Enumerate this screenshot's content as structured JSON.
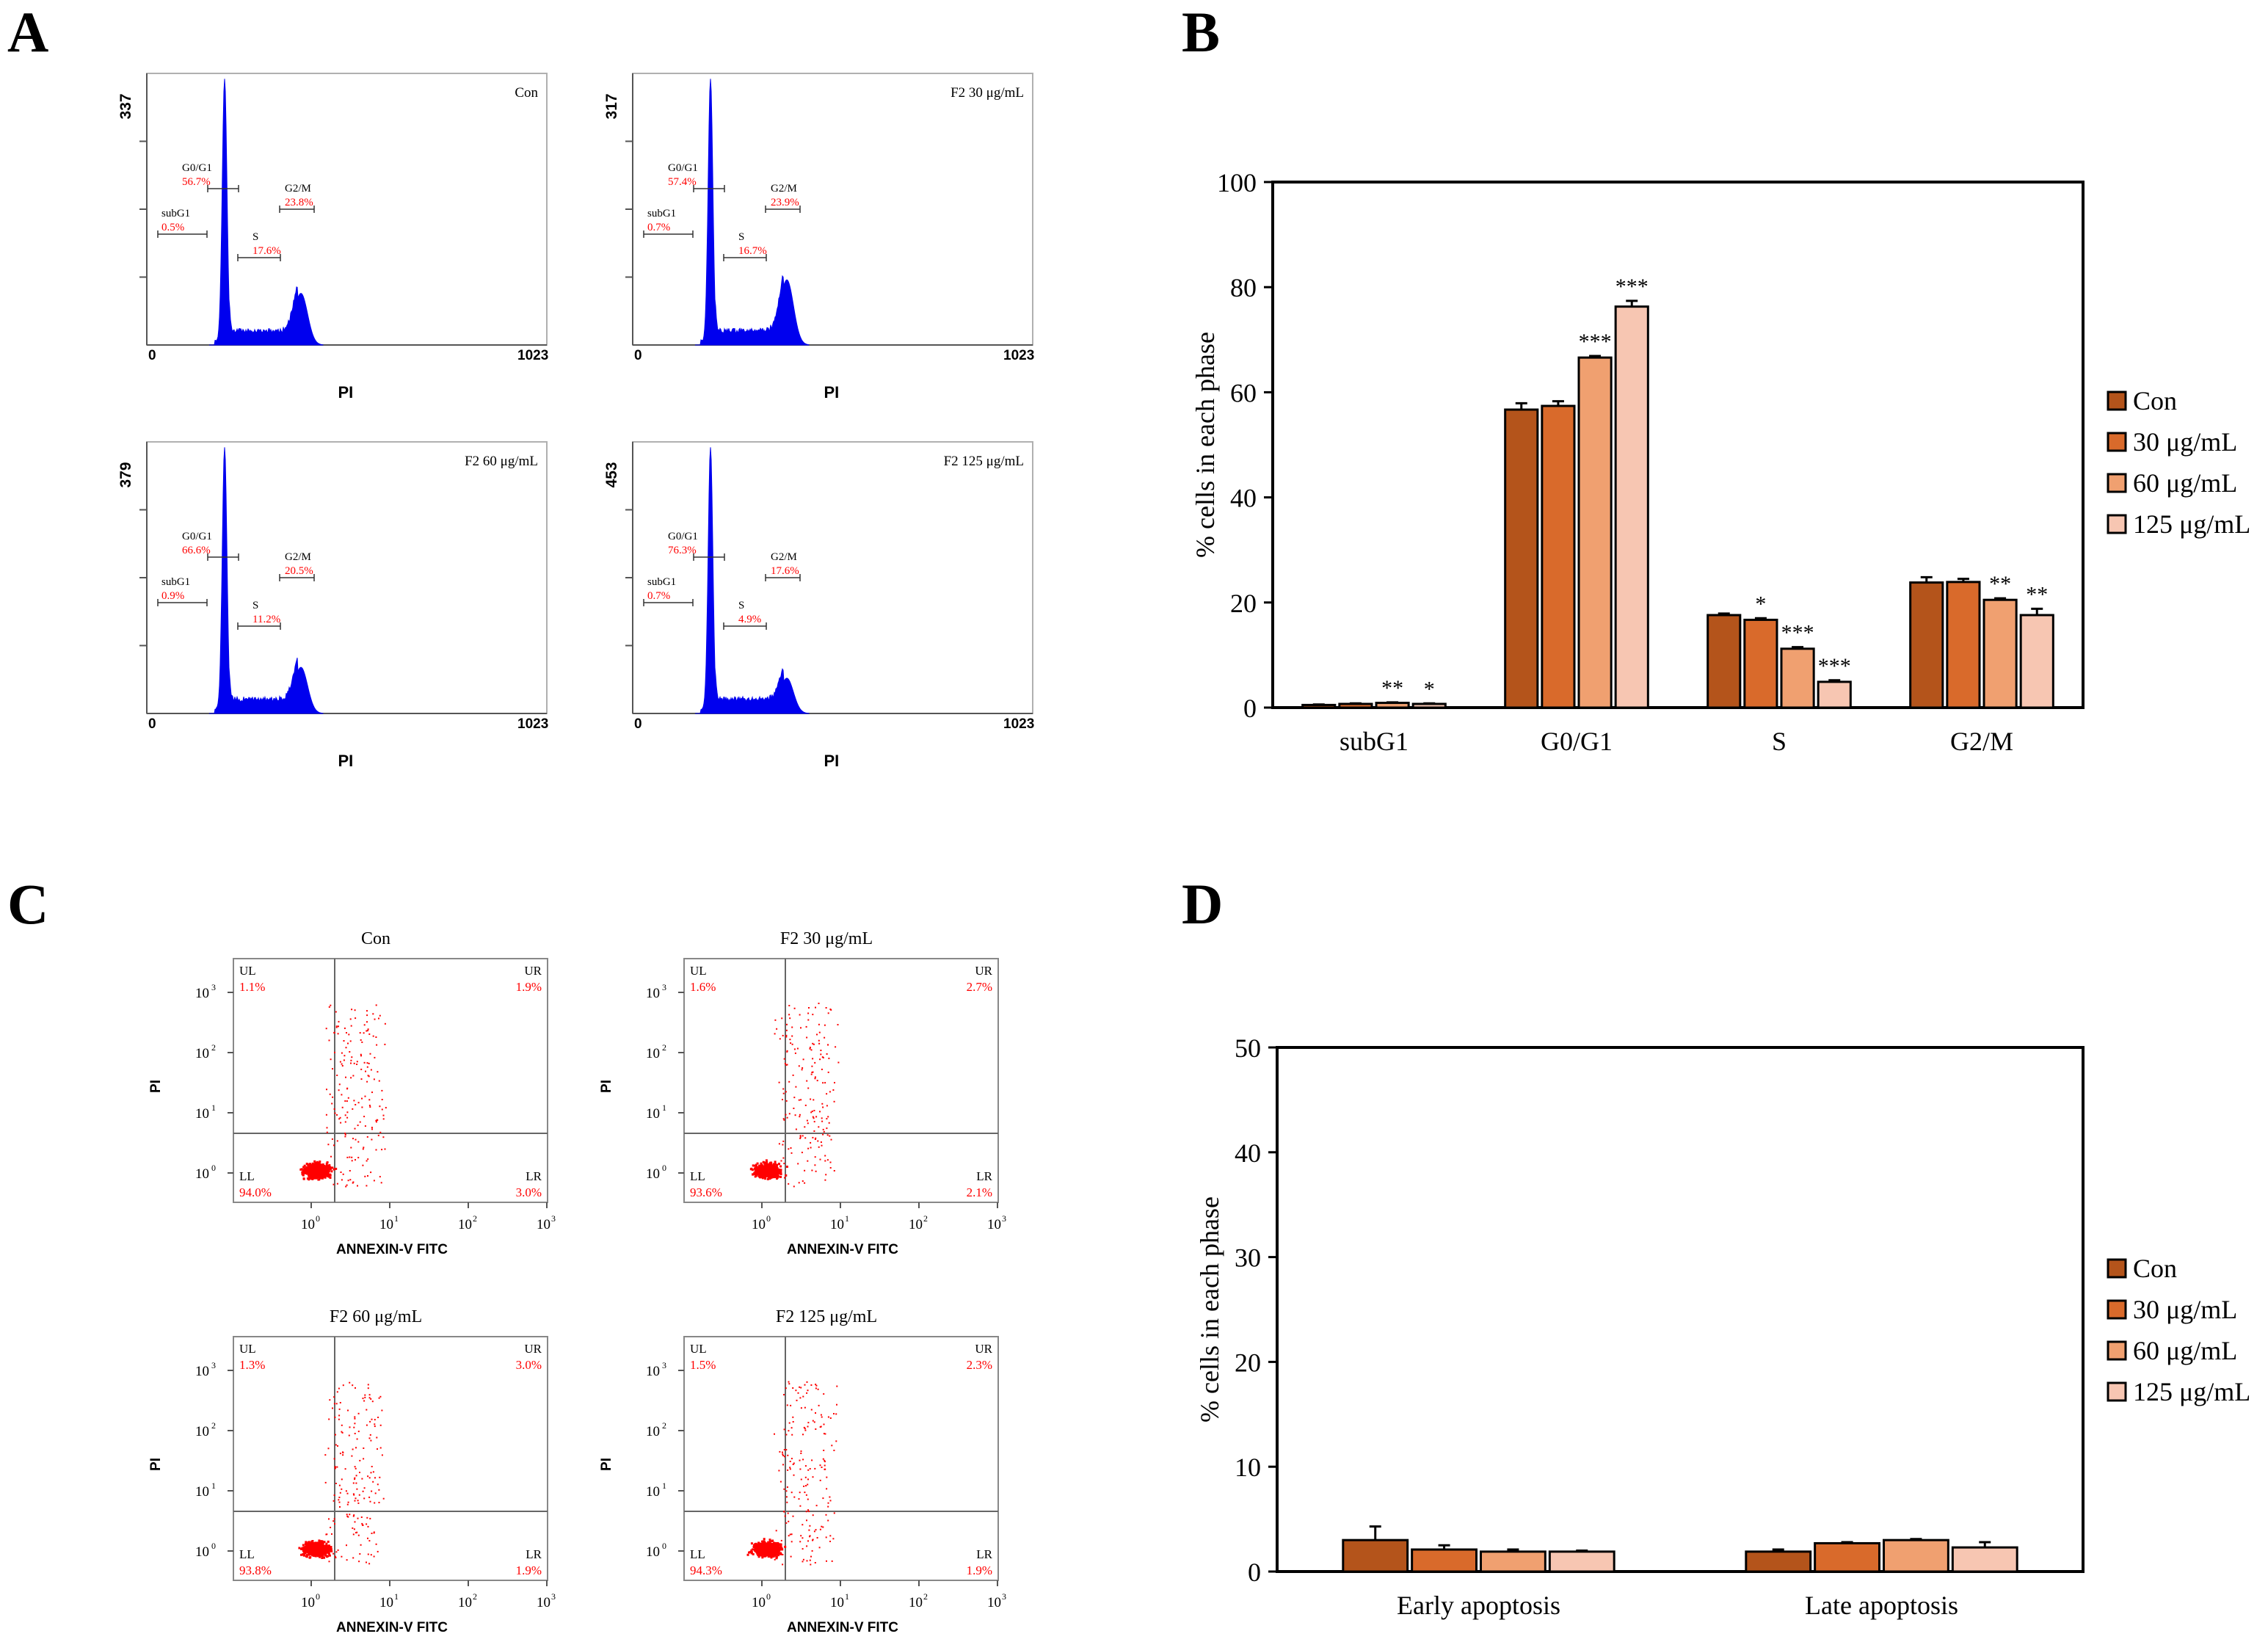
{
  "panel_labels": [
    "A",
    "B",
    "C",
    "D"
  ],
  "colors": {
    "con": "#b4541b",
    "c30": "#d96a2b",
    "c60": "#f0a070",
    "c125": "#f7c6b2",
    "histo": "#0000ee",
    "dots": "#ff0000",
    "red_text": "#ff0000"
  },
  "histograms": [
    {
      "title": "Con",
      "ymax": "337",
      "x0": "0",
      "x1": "1023",
      "xlabel": "PI",
      "peaks": {
        "g1": 0.98,
        "g2": 0.19
      },
      "gates": {
        "subG1": {
          "label": "subG1",
          "value": "0.5%"
        },
        "g0g1": {
          "label": "G0/G1",
          "value": "56.7%"
        },
        "s": {
          "label": "S",
          "value": "17.6%"
        },
        "g2m": {
          "label": "G2/M",
          "value": "23.8%"
        }
      }
    },
    {
      "title": "F2 30 μg/mL",
      "ymax": "317",
      "x0": "0",
      "x1": "1023",
      "xlabel": "PI",
      "peaks": {
        "g1": 0.98,
        "g2": 0.24
      },
      "gates": {
        "subG1": {
          "label": "subG1",
          "value": "0.7%"
        },
        "g0g1": {
          "label": "G0/G1",
          "value": "57.4%"
        },
        "s": {
          "label": "S",
          "value": "16.7%"
        },
        "g2m": {
          "label": "G2/M",
          "value": "23.9%"
        }
      }
    },
    {
      "title": "F2 60 μg/mL",
      "ymax": "379",
      "x0": "0",
      "x1": "1023",
      "xlabel": "PI",
      "peaks": {
        "g1": 0.98,
        "g2": 0.17
      },
      "gates": {
        "subG1": {
          "label": "subG1",
          "value": "0.9%"
        },
        "g0g1": {
          "label": "G0/G1",
          "value": "66.6%"
        },
        "s": {
          "label": "S",
          "value": "11.2%"
        },
        "g2m": {
          "label": "G2/M",
          "value": "20.5%"
        }
      }
    },
    {
      "title": "F2 125 μg/mL",
      "ymax": "453",
      "x0": "0",
      "x1": "1023",
      "xlabel": "PI",
      "peaks": {
        "g1": 0.98,
        "g2": 0.13
      },
      "gates": {
        "subG1": {
          "label": "subG1",
          "value": "0.7%"
        },
        "g0g1": {
          "label": "G0/G1",
          "value": "76.3%"
        },
        "s": {
          "label": "S",
          "value": "4.9%"
        },
        "g2m": {
          "label": "G2/M",
          "value": "17.6%"
        }
      }
    }
  ],
  "dot_plots": [
    {
      "title": "Con",
      "xlabel": "ANNEXIN-V FITC",
      "ylabel": "PI",
      "ul": "1.1%",
      "ur": "1.9%",
      "ll": "94.0%",
      "lr": "3.0%"
    },
    {
      "title": "F2 30 μg/mL",
      "xlabel": "ANNEXIN-V FITC",
      "ylabel": "PI",
      "ul": "1.6%",
      "ur": "2.7%",
      "ll": "93.6%",
      "lr": "2.1%"
    },
    {
      "title": "F2 60 μg/mL",
      "xlabel": "ANNEXIN-V FITC",
      "ylabel": "PI",
      "ul": "1.3%",
      "ur": "3.0%",
      "ll": "93.8%",
      "lr": "1.9%"
    },
    {
      "title": "F2 125 μg/mL",
      "xlabel": "ANNEXIN-V FITC",
      "ylabel": "PI",
      "ul": "1.5%",
      "ur": "2.3%",
      "ll": "94.3%",
      "lr": "1.9%"
    }
  ],
  "dot_axis": {
    "quadrants": [
      "UL",
      "UR",
      "LL",
      "LR"
    ],
    "ticks": [
      "10",
      "10",
      "10",
      "10"
    ],
    "exps": [
      "0",
      "1",
      "2",
      "3"
    ]
  },
  "chart_data": [
    {
      "panel": "B",
      "type": "bar",
      "title": "",
      "xlabel": "",
      "ylabel": "% cells in each phase",
      "ylim": [
        0,
        100
      ],
      "yticks": [
        0,
        20,
        40,
        60,
        80,
        100
      ],
      "categories": [
        "subG1",
        "G0/G1",
        "S",
        "G2/M"
      ],
      "series": [
        {
          "name": "Con",
          "values": [
            0.5,
            56.7,
            17.6,
            23.8
          ],
          "errors": [
            0.1,
            1.2,
            0.3,
            1.0
          ]
        },
        {
          "name": "30 μg/mL",
          "values": [
            0.7,
            57.4,
            16.7,
            23.9
          ],
          "errors": [
            0.1,
            0.9,
            0.3,
            0.6
          ]
        },
        {
          "name": "60 μg/mL",
          "values": [
            0.9,
            66.6,
            11.2,
            20.5
          ],
          "errors": [
            0.1,
            0.3,
            0.3,
            0.3
          ]
        },
        {
          "name": "125 μg/mL",
          "values": [
            0.7,
            76.3,
            4.9,
            17.6
          ],
          "errors": [
            0.1,
            1.1,
            0.3,
            1.2
          ]
        }
      ],
      "significance": [
        {
          "category": 0,
          "series": 2,
          "label": "**"
        },
        {
          "category": 0,
          "series": 3,
          "label": "*"
        },
        {
          "category": 1,
          "series": 2,
          "label": "***"
        },
        {
          "category": 1,
          "series": 3,
          "label": "***"
        },
        {
          "category": 2,
          "series": 1,
          "label": "*"
        },
        {
          "category": 2,
          "series": 2,
          "label": "***"
        },
        {
          "category": 2,
          "series": 3,
          "label": "***"
        },
        {
          "category": 3,
          "series": 2,
          "label": "**"
        },
        {
          "category": 3,
          "series": 3,
          "label": "**"
        }
      ],
      "legend_position": "right"
    },
    {
      "panel": "D",
      "type": "bar",
      "title": "",
      "xlabel": "",
      "ylabel": "% cells in each phase",
      "ylim": [
        0,
        50
      ],
      "yticks": [
        0,
        10,
        20,
        30,
        40,
        50
      ],
      "categories": [
        "Early apoptosis",
        "Late apoptosis"
      ],
      "series": [
        {
          "name": "Con",
          "values": [
            3.0,
            1.9
          ],
          "errors": [
            1.3,
            0.2
          ]
        },
        {
          "name": "30 μg/mL",
          "values": [
            2.1,
            2.7
          ],
          "errors": [
            0.4,
            0.1
          ]
        },
        {
          "name": "60 μg/mL",
          "values": [
            1.9,
            3.0
          ],
          "errors": [
            0.2,
            0.1
          ]
        },
        {
          "name": "125 μg/mL",
          "values": [
            1.9,
            2.3
          ],
          "errors": [
            0.1,
            0.5
          ]
        }
      ],
      "significance": [],
      "legend_position": "right"
    }
  ]
}
